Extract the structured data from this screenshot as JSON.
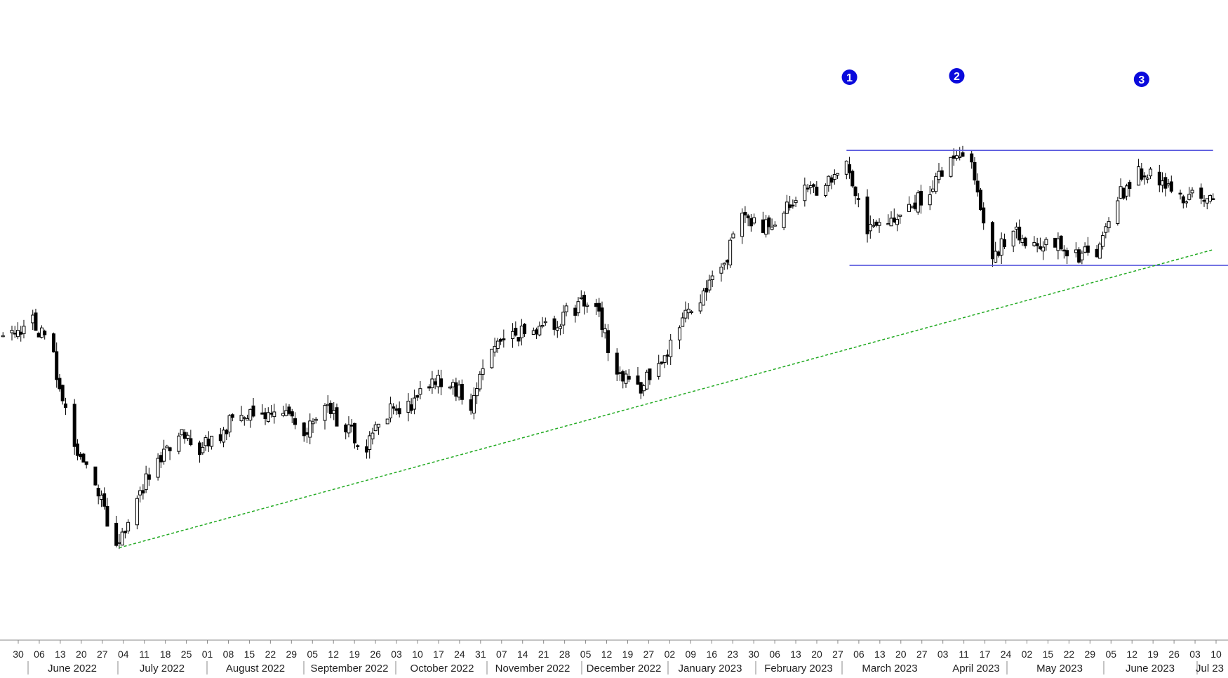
{
  "chart_data": {
    "type": "candlestick",
    "title": "",
    "xlabel": "",
    "ylabel": "",
    "y_axis_visible": false,
    "grid": false,
    "legend": "none",
    "x_range": [
      "2022-05-26",
      "2023-07-12"
    ],
    "y_range": [
      0,
      100
    ],
    "y_note": "no price axis is printed; y values are relative heights 0-100",
    "colors": {
      "candle": "#000000",
      "hline": "#5555dd",
      "trendline": "#22aa22",
      "marker": "#0a0adc",
      "marker_text": "#ffffff",
      "axis_text": "#222222"
    },
    "candles_weekly_close": [
      {
        "x": "2022-05-30",
        "y": 48
      },
      {
        "x": "2022-06-06",
        "y": 52
      },
      {
        "x": "2022-06-13",
        "y": 44
      },
      {
        "x": "2022-06-20",
        "y": 28
      },
      {
        "x": "2022-06-27",
        "y": 20
      },
      {
        "x": "2022-07-04",
        "y": 8
      },
      {
        "x": "2022-07-11",
        "y": 18
      },
      {
        "x": "2022-07-18",
        "y": 24
      },
      {
        "x": "2022-07-25",
        "y": 30
      },
      {
        "x": "2022-08-01",
        "y": 27
      },
      {
        "x": "2022-08-08",
        "y": 30
      },
      {
        "x": "2022-08-15",
        "y": 34
      },
      {
        "x": "2022-08-22",
        "y": 33
      },
      {
        "x": "2022-08-29",
        "y": 35
      },
      {
        "x": "2022-09-05",
        "y": 30
      },
      {
        "x": "2022-09-12",
        "y": 35
      },
      {
        "x": "2022-09-19",
        "y": 31
      },
      {
        "x": "2022-09-26",
        "y": 27
      },
      {
        "x": "2022-10-03",
        "y": 34
      },
      {
        "x": "2022-10-10",
        "y": 35
      },
      {
        "x": "2022-10-17",
        "y": 39
      },
      {
        "x": "2022-10-24",
        "y": 40
      },
      {
        "x": "2022-10-31",
        "y": 35
      },
      {
        "x": "2022-11-07",
        "y": 47
      },
      {
        "x": "2022-11-14",
        "y": 49
      },
      {
        "x": "2022-11-21",
        "y": 49
      },
      {
        "x": "2022-11-28",
        "y": 51
      },
      {
        "x": "2022-12-05",
        "y": 54
      },
      {
        "x": "2022-12-12",
        "y": 55
      },
      {
        "x": "2022-12-19",
        "y": 40
      },
      {
        "x": "2022-12-27",
        "y": 39
      },
      {
        "x": "2023-01-02",
        "y": 42
      },
      {
        "x": "2023-01-09",
        "y": 51
      },
      {
        "x": "2023-01-16",
        "y": 56
      },
      {
        "x": "2023-01-23",
        "y": 61
      },
      {
        "x": "2023-01-30",
        "y": 71
      },
      {
        "x": "2023-02-06",
        "y": 69
      },
      {
        "x": "2023-02-13",
        "y": 73
      },
      {
        "x": "2023-02-20",
        "y": 76
      },
      {
        "x": "2023-02-27",
        "y": 77
      },
      {
        "x": "2023-03-06",
        "y": 81
      },
      {
        "x": "2023-03-13",
        "y": 69
      },
      {
        "x": "2023-03-20",
        "y": 69
      },
      {
        "x": "2023-03-27",
        "y": 73
      },
      {
        "x": "2023-04-03",
        "y": 76
      },
      {
        "x": "2023-04-10",
        "y": 83
      },
      {
        "x": "2023-04-17",
        "y": 82
      },
      {
        "x": "2023-04-24",
        "y": 63
      },
      {
        "x": "2023-05-01",
        "y": 69
      },
      {
        "x": "2023-05-08",
        "y": 66
      },
      {
        "x": "2023-05-15",
        "y": 66
      },
      {
        "x": "2023-05-22",
        "y": 64
      },
      {
        "x": "2023-05-29",
        "y": 64
      },
      {
        "x": "2023-06-05",
        "y": 75
      },
      {
        "x": "2023-06-12",
        "y": 80
      },
      {
        "x": "2023-06-19",
        "y": 78
      },
      {
        "x": "2023-06-26",
        "y": 75
      },
      {
        "x": "2023-07-03",
        "y": 75
      }
    ],
    "resistance_line": {
      "from": "2023-03-06",
      "to": "2023-07-07",
      "y": 84
    },
    "support_line": {
      "from": "2023-03-07",
      "to": "2023-07-12",
      "y": 62
    },
    "trend_line": {
      "from": {
        "x": "2022-07-05",
        "y": 8
      },
      "to": {
        "x": "2023-07-07",
        "y": 65
      }
    },
    "markers": [
      {
        "label": "1",
        "x": "2023-03-07"
      },
      {
        "label": "2",
        "x": "2023-04-12"
      },
      {
        "label": "3",
        "x": "2023-06-13"
      }
    ],
    "x_tick_labels": [
      "30",
      "06",
      "13",
      "20",
      "27",
      "04",
      "11",
      "18",
      "25",
      "01",
      "08",
      "15",
      "22",
      "29",
      "05",
      "12",
      "19",
      "26",
      "03",
      "10",
      "17",
      "24",
      "31",
      "07",
      "14",
      "21",
      "28",
      "05",
      "12",
      "19",
      "27",
      "02",
      "09",
      "16",
      "23",
      "30",
      "06",
      "13",
      "20",
      "27",
      "06",
      "13",
      "20",
      "27",
      "03",
      "11",
      "17",
      "24",
      "02",
      "15",
      "22",
      "29",
      "05",
      "12",
      "19",
      "26",
      "03",
      "10"
    ],
    "month_labels": [
      "June 2022",
      "July 2022",
      "August 2022",
      "September 2022",
      "October 2022",
      "November 2022",
      "December 2022",
      "January 2023",
      "February 2023",
      "March 2023",
      "April 2023",
      "May 2023",
      "June 2023",
      "Jul 23"
    ]
  }
}
